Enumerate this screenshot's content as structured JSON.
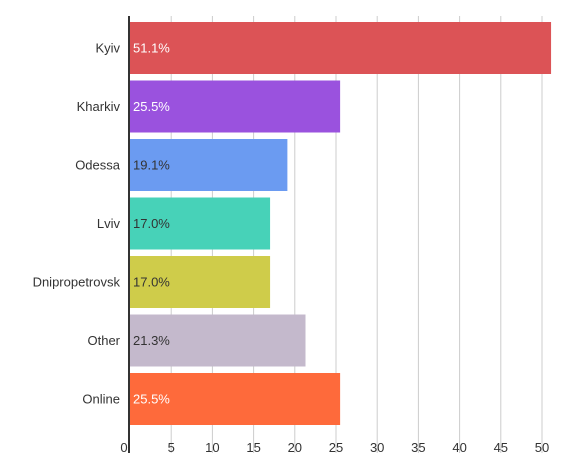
{
  "chart_data": {
    "type": "bar",
    "orientation": "horizontal",
    "title": "",
    "xlabel": "",
    "ylabel": "",
    "categories": [
      "Kyiv",
      "Kharkiv",
      "Odessa",
      "Lviv",
      "Dnipropetrovsk",
      "Other",
      "Online"
    ],
    "values": [
      51.1,
      25.5,
      19.1,
      17.0,
      17.0,
      21.3,
      25.5
    ],
    "value_labels": [
      "51.1%",
      "25.5%",
      "19.1%",
      "17.0%",
      "17.0%",
      "21.3%",
      "25.5%"
    ],
    "colors": [
      "#dc5356",
      "#9a52de",
      "#6b9bf1",
      "#47d2b8",
      "#cfcc4a",
      "#c4b9cc",
      "#fe6a3b"
    ],
    "label_colors": [
      "#ffffff",
      "#ffffff",
      "#333333",
      "#333333",
      "#333333",
      "#333333",
      "#ffffff"
    ],
    "xlim": [
      0,
      52
    ],
    "xticks": [
      0,
      5,
      10,
      15,
      20,
      25,
      30,
      35,
      40,
      45,
      50
    ],
    "grid": true
  }
}
